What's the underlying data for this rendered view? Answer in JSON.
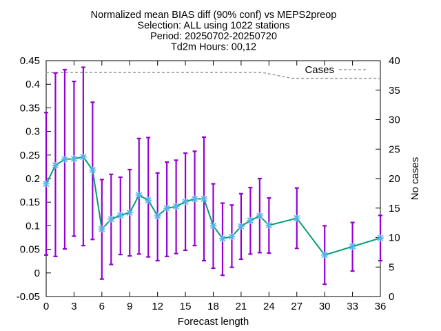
{
  "chart_data": {
    "type": "line",
    "title_lines": [
      "Normalized mean BIAS diff (90% conf) vs MEPS2preop",
      "Selection: ALL using  1022 stations",
      "Period: 20250702-20250720",
      "Td2m   Hours: 00,12"
    ],
    "xlabel": "Forecast length",
    "ylabel": "",
    "y2label": "No cases",
    "xlim": [
      0,
      36
    ],
    "ylim": [
      -0.05,
      0.45
    ],
    "y2lim": [
      0,
      40
    ],
    "x_ticks": [
      0,
      3,
      6,
      9,
      12,
      15,
      18,
      21,
      24,
      27,
      30,
      33,
      36
    ],
    "y_ticks": [
      -0.05,
      0,
      0.05,
      0.1,
      0.15,
      0.2,
      0.25,
      0.3,
      0.35,
      0.4,
      0.45
    ],
    "y_tick_labels": [
      "-0.05",
      "0",
      "0.05",
      "0.1",
      "0.15",
      "0.2",
      "0.25",
      "0.3",
      "0.35",
      "0.4",
      "0.45"
    ],
    "y2_ticks": [
      0,
      5,
      10,
      15,
      20,
      25,
      30,
      35,
      40
    ],
    "grid": false,
    "legend": {
      "position": "top-right",
      "entries": [
        "Cases"
      ]
    },
    "series": [
      {
        "type": "line-errorbar",
        "color": "#009e73",
        "marker_color": "#56b4e9",
        "errorbar_color": "#9400d3",
        "x": [
          0,
          1,
          2,
          3,
          4,
          5,
          6,
          7,
          8,
          9,
          10,
          11,
          12,
          13,
          14,
          15,
          16,
          17,
          18,
          19,
          20,
          21,
          22,
          23,
          24,
          27,
          30,
          33,
          36
        ],
        "y": [
          0.189,
          0.228,
          0.241,
          0.242,
          0.246,
          0.218,
          0.093,
          0.114,
          0.122,
          0.128,
          0.165,
          0.154,
          0.121,
          0.137,
          0.141,
          0.151,
          0.157,
          0.157,
          0.1,
          0.073,
          0.077,
          0.099,
          0.111,
          0.121,
          0.101,
          0.116,
          0.038,
          0.056,
          0.074
        ],
        "y_low": [
          0.038,
          0.035,
          0.051,
          0.078,
          0.058,
          0.071,
          -0.013,
          0.018,
          0.039,
          0.036,
          0.04,
          0.034,
          0.026,
          0.035,
          0.041,
          0.048,
          0.058,
          0.026,
          0.01,
          -0.005,
          0.012,
          0.029,
          0.04,
          0.043,
          0.042,
          0.052,
          -0.024,
          0.004,
          0.026
        ],
        "y_high": [
          0.34,
          0.424,
          0.431,
          0.406,
          0.436,
          0.362,
          0.198,
          0.209,
          0.203,
          0.219,
          0.285,
          0.287,
          0.212,
          0.235,
          0.239,
          0.254,
          0.258,
          0.288,
          0.189,
          0.148,
          0.144,
          0.168,
          0.181,
          0.2,
          0.159,
          0.18,
          0.1,
          0.107,
          0.122
        ]
      },
      {
        "type": "cases-line",
        "axis": "y2",
        "name": "Cases",
        "color": "#999999",
        "x": [
          0,
          23.3,
          26.5,
          36
        ],
        "y": [
          38,
          38,
          37,
          37
        ]
      }
    ]
  }
}
